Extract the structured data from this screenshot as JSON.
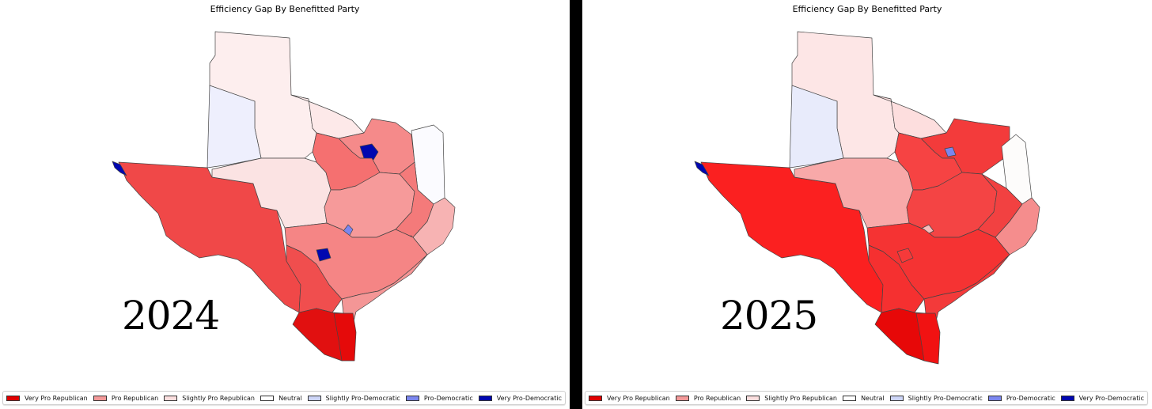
{
  "panels": [
    {
      "title": "Efficiency Gap By Benefitted Party",
      "year": "2024",
      "regions": {
        "panhandle_north": "Slightly Pro Republican",
        "panhandle_west": "Slightly Pro-Democratic",
        "north_central_west": "Slightly Pro Republican",
        "far_west": "Pro Republican",
        "west_central": "Slightly Pro Republican",
        "central_west": "Pro Republican",
        "dfw_north": "Pro Republican",
        "dfw_core": "Very Pro-Democratic",
        "east": "Neutral",
        "central": "Pro Republican",
        "central_east": "Pro Republican",
        "southeast": "Slightly Pro Republican",
        "houston": "Very Pro-Democratic",
        "austin": "Pro-Democratic",
        "san_antonio": "Very Pro-Democratic",
        "south_central": "Pro Republican",
        "south_west": "Pro Republican",
        "coastal_bend": "Pro Republican",
        "rio_grande_west": "Very Pro Republican",
        "rio_grande_east": "Very Pro Republican",
        "el_paso": "Very Pro-Democratic"
      }
    },
    {
      "title": "Efficiency Gap By Benefitted Party",
      "year": "2025",
      "regions": {
        "panhandle_north": "Slightly Pro Republican",
        "panhandle_west": "Slightly Pro-Democratic",
        "north_central_west": "Slightly Pro Republican",
        "far_west": "Very Pro Republican",
        "west_central": "Pro Republican",
        "central_west": "Very Pro Republican",
        "dfw_north": "Very Pro Republican",
        "dfw_core": "Pro-Democratic",
        "east": "Neutral",
        "central": "Very Pro Republican",
        "central_east": "Very Pro Republican",
        "southeast": "Pro Republican",
        "houston": "Pro-Democratic",
        "austin": "Pro Republican",
        "san_antonio": "Very Pro Republican",
        "south_central": "Very Pro Republican",
        "south_west": "Very Pro Republican",
        "coastal_bend": "Very Pro Republican",
        "rio_grande_west": "Very Pro Republican",
        "rio_grande_east": "Very Pro Republican",
        "el_paso": "Very Pro-Democratic"
      }
    }
  ],
  "legend": [
    {
      "label": "Very Pro Republican",
      "color": "#e00000"
    },
    {
      "label": "Pro Republican",
      "color": "#f39999"
    },
    {
      "label": "Slightly Pro Republican",
      "color": "#fbdede"
    },
    {
      "label": "Neutral",
      "color": "#ffffff"
    },
    {
      "label": "Slightly Pro-Democratic",
      "color": "#cdd5f7"
    },
    {
      "label": "Pro-Democratic",
      "color": "#7b86ee"
    },
    {
      "label": "Very Pro-Democratic",
      "color": "#0007b0"
    }
  ],
  "fills_by_panel": [
    {
      "panhandle_north": "#fdeeee",
      "panhandle_west": "#eeeffd",
      "north_central_west": "#fde9e9",
      "far_west": "#f04848",
      "west_central": "#fbe3e3",
      "central_west": "#f57070",
      "dfw_north": "#f58a8a",
      "dfw_core": "#0007b0",
      "east": "#fbfbff",
      "central": "#f69a9a",
      "central_east": "#f47a7a",
      "southeast": "#f7b3b3",
      "houston": "#0007b0",
      "austin": "#7b86ee",
      "san_antonio": "#0007b0",
      "south_central": "#f58585",
      "south_west": "#f04e4e",
      "coastal_bend": "#f49696",
      "rio_grande_west": "#e11010",
      "rio_grande_east": "#e50a0a",
      "el_paso": "#0007b0"
    },
    {
      "panhandle_north": "#fde6e6",
      "panhandle_west": "#e8ebfb",
      "north_central_west": "#fddede",
      "far_west": "#fb2020",
      "west_central": "#f8a9a9",
      "central_west": "#f64343",
      "dfw_north": "#f33b3b",
      "dfw_core": "#7b86ee",
      "east": "#fdfcfb",
      "central": "#f44444",
      "central_east": "#f24141",
      "southeast": "#f58d8d",
      "houston": "#7b86ee",
      "austin": "#f8bcbc",
      "san_antonio": "#f63a3a",
      "south_central": "#f53333",
      "south_west": "#f53030",
      "coastal_bend": "#f33a3a",
      "rio_grande_west": "#e70808",
      "rio_grande_east": "#f11212",
      "el_paso": "#0007b0"
    }
  ]
}
